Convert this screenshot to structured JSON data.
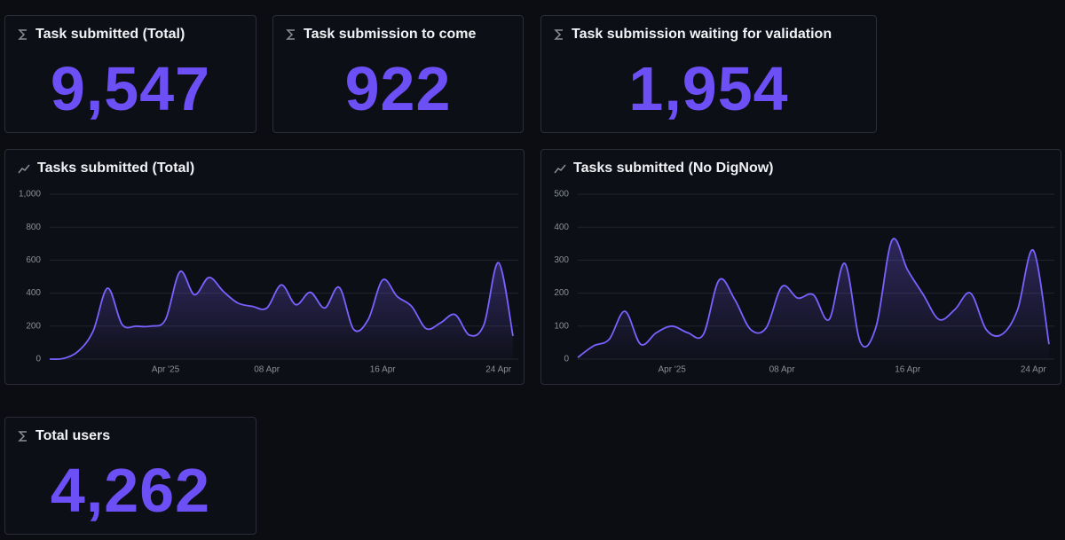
{
  "stats": [
    {
      "title": "Task submitted (Total)",
      "value": "9,547"
    },
    {
      "title": "Task submission to come",
      "value": "922"
    },
    {
      "title": "Task submission waiting for validation",
      "value": "1,954"
    },
    {
      "title": "Total users",
      "value": "4,262"
    }
  ],
  "chart_data": [
    {
      "type": "area",
      "title": "Tasks submitted (Total)",
      "color": "#7b61ff",
      "categories": [
        null,
        null,
        null,
        null,
        null,
        null,
        null,
        null,
        "Apr '25",
        null,
        null,
        null,
        null,
        null,
        null,
        "08 Apr",
        null,
        null,
        null,
        null,
        null,
        null,
        null,
        "16 Apr",
        null,
        null,
        null,
        null,
        null,
        null,
        null,
        "24 Apr",
        null
      ],
      "values": [
        0,
        5,
        50,
        170,
        430,
        210,
        200,
        200,
        240,
        530,
        390,
        495,
        410,
        340,
        320,
        310,
        450,
        330,
        405,
        310,
        435,
        180,
        240,
        480,
        380,
        320,
        185,
        220,
        270,
        145,
        210,
        585,
        140
      ],
      "ylim": [
        0,
        1000
      ],
      "yticks": [
        0,
        200,
        400,
        600,
        800,
        {
          "value": 1000,
          "label": "1,000"
        }
      ],
      "grid": true
    },
    {
      "type": "area",
      "title": "Tasks submitted (No DigNow)",
      "color": "#7b61ff",
      "categories": [
        null,
        null,
        null,
        null,
        null,
        null,
        "Apr '25",
        null,
        null,
        null,
        null,
        null,
        null,
        "08 Apr",
        null,
        null,
        null,
        null,
        null,
        null,
        null,
        "16 Apr",
        null,
        null,
        null,
        null,
        null,
        null,
        null,
        "24 Apr",
        null
      ],
      "values": [
        5,
        40,
        60,
        145,
        45,
        80,
        100,
        80,
        75,
        240,
        180,
        90,
        95,
        220,
        185,
        195,
        120,
        290,
        50,
        100,
        360,
        270,
        195,
        120,
        150,
        200,
        90,
        75,
        150,
        330,
        45
      ],
      "ylim": [
        0,
        500
      ],
      "yticks": [
        0,
        100,
        200,
        300,
        400,
        500
      ],
      "grid": true
    }
  ]
}
